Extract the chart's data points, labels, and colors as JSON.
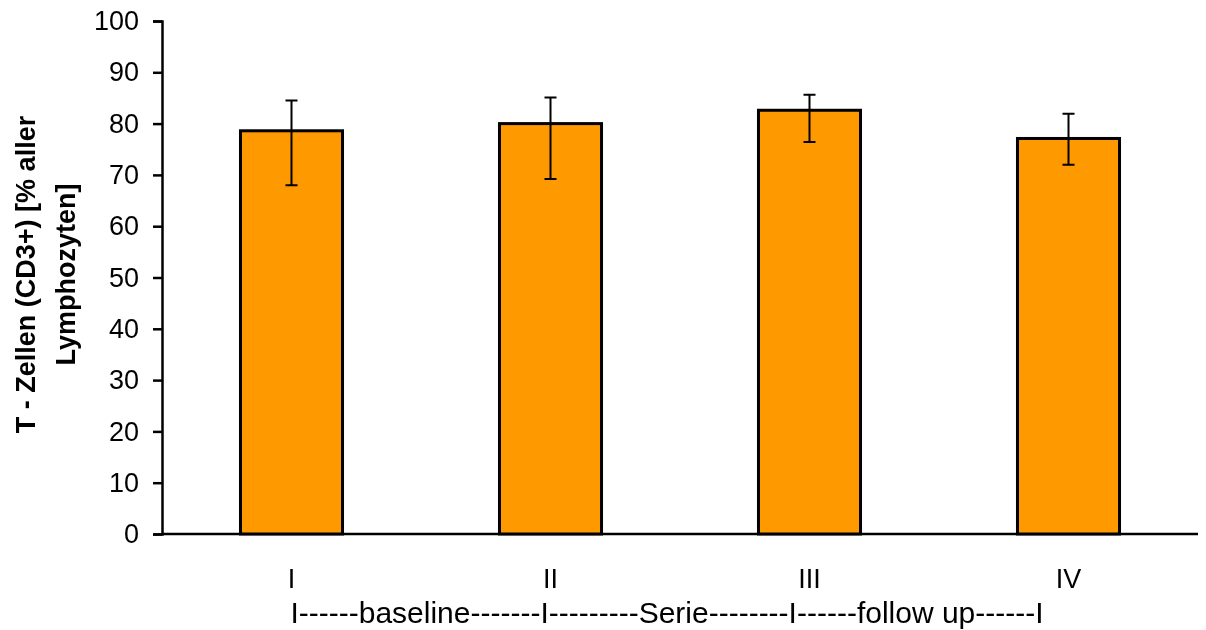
{
  "chart_data": {
    "type": "bar",
    "ylabel": "T - Zellen (CD3+) [% aller Lymphozyten]",
    "xlabel": "I------baseline-------I---------Serie--------I------follow up------I",
    "categories": [
      "I",
      "II",
      "III",
      "IV"
    ],
    "values": [
      78.6,
      80.0,
      82.6,
      77.1
    ],
    "errors": [
      [
        68.0,
        84.5
      ],
      [
        69.2,
        85.1
      ],
      [
        76.4,
        85.6
      ],
      [
        72.0,
        81.9
      ]
    ],
    "color": "#ff9900",
    "ylim": [
      0,
      100
    ],
    "yticks": [
      0,
      10,
      20,
      30,
      40,
      50,
      60,
      70,
      80,
      90,
      100
    ],
    "grid": false
  }
}
